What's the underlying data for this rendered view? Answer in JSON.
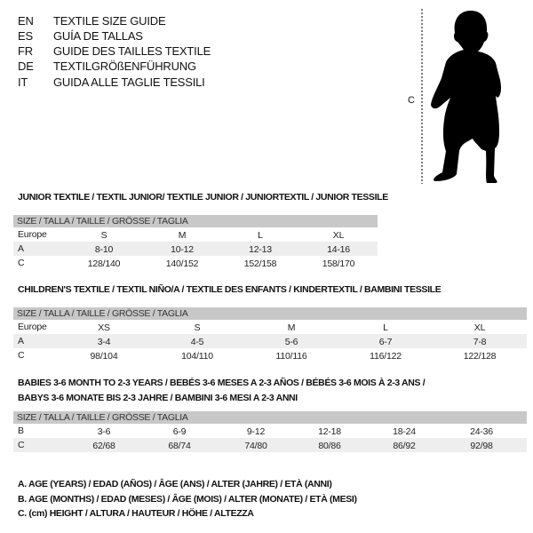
{
  "header": {
    "languages": [
      {
        "code": "EN",
        "text": "TEXTILE SIZE GUIDE"
      },
      {
        "code": "ES",
        "text": "GUÍA DE TALLAS"
      },
      {
        "code": "FR",
        "text": "GUIDE DES TAILLES TEXTILE"
      },
      {
        "code": "DE",
        "text": "TEXTILGRÖßENFÜHRUNG"
      },
      {
        "code": "IT",
        "text": "GUIDA ALLE TAGLIE TESSILI"
      }
    ],
    "figure_label": "C"
  },
  "junior": {
    "title": "JUNIOR TEXTILE / TEXTIL JUNIOR/ TEXTILE JUNIOR / JUNIORTEXTIL / JUNIOR TESSILE",
    "header": "SIZE / TALLA / TAILLE / GRÖSSE / TAGLIA",
    "rows": [
      {
        "label": "Europe",
        "values": [
          "S",
          "M",
          "L",
          "XL"
        ]
      },
      {
        "label": "A",
        "values": [
          "8-10",
          "10-12",
          "12-13",
          "14-16"
        ]
      },
      {
        "label": "C",
        "values": [
          "128/140",
          "140/152",
          "152/158",
          "158/170"
        ]
      }
    ]
  },
  "children": {
    "title": "CHILDREN'S TEXTILE / TEXTIL NIÑO/A / TEXTILE DES ENFANTS / KINDERTEXTIL / BAMBINI TESSILE",
    "header": "SIZE / TALLA / TAILLE / GRÖSSE / TAGLIA",
    "rows": [
      {
        "label": "Europe",
        "values": [
          "XS",
          "S",
          "M",
          "L",
          "XL"
        ]
      },
      {
        "label": "A",
        "values": [
          "3-4",
          "4-5",
          "5-6",
          "6-7",
          "7-8"
        ]
      },
      {
        "label": "C",
        "values": [
          "98/104",
          "104/110",
          "110/116",
          "116/122",
          "122/128"
        ]
      }
    ]
  },
  "babies": {
    "title_line1": "BABIES 3-6 MONTH TO 2-3 YEARS / BEBÉS 3-6 MESES A 2-3 AÑOS / BÉBÉS 3-6 MOIS À 2-3 ANS /",
    "title_line2": "BABYS 3-6 MONATE BIS 2-3 JAHRE / BAMBINI 3-6 MESI A 2-3 ANNI",
    "header": "SIZE / TALLA / TAILLE / GRÖSSE / TAGLIA",
    "rows": [
      {
        "label": "B",
        "values": [
          "3-6",
          "6-9",
          "9-12",
          "12-18",
          "18-24",
          "24-36"
        ]
      },
      {
        "label": "C",
        "values": [
          "62/68",
          "68/74",
          "74/80",
          "80/86",
          "86/92",
          "92/98"
        ]
      }
    ]
  },
  "legend": [
    "A. AGE (YEARS) / EDAD (AÑOS) / ÂGE (ANS) / ALTER (JAHRE) / ETÀ (ANNI)",
    "B. AGE (MONTHS) / EDAD (MESES) / ÂGE (MOIS) / ALTER (MONATE) / ETÀ (MESI)",
    "C. (cm) HEIGHT / ALTURA / HAUTEUR / HÖHE / ALTEZZA"
  ]
}
